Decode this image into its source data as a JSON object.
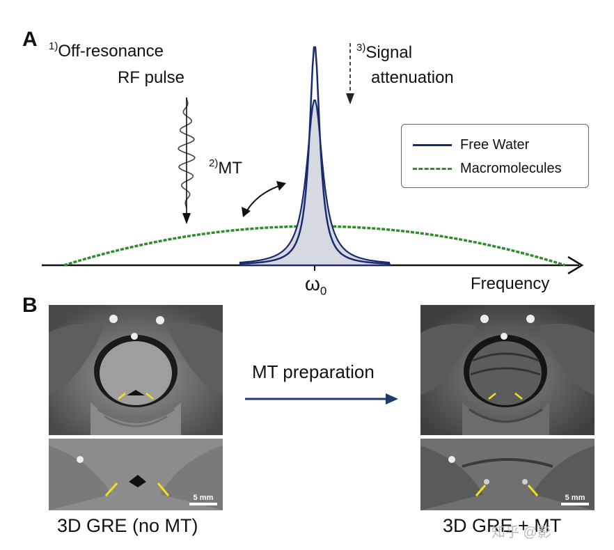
{
  "panel_a": {
    "letter": "A",
    "step1_num": "1)",
    "step1_line1": "Off-resonance",
    "step1_line2": "RF pulse",
    "step2_num": "2)",
    "step2_text": "MT",
    "step3_num": "3)",
    "step3_line1": "Signal",
    "step3_line2": "attenuation",
    "omega_main": "ω",
    "omega_sub": "0",
    "axis_label": "Frequency",
    "legend": [
      {
        "label": "Free Water",
        "color": "#1a2a6c",
        "style": "solid"
      },
      {
        "label": "Macromolecules",
        "color": "#2e8b2e",
        "style": "dashed"
      }
    ],
    "fill_color": "#d5d9e2"
  },
  "panel_b": {
    "letter": "B",
    "arrow_label": "MT preparation",
    "arrow_color": "#1f3b6b",
    "left_caption": "3D GRE (no MT)",
    "right_caption": "3D GRE + MT",
    "scale_label": "5 mm",
    "marker_color": "#f3e21a"
  },
  "watermark": "知乎 @影"
}
